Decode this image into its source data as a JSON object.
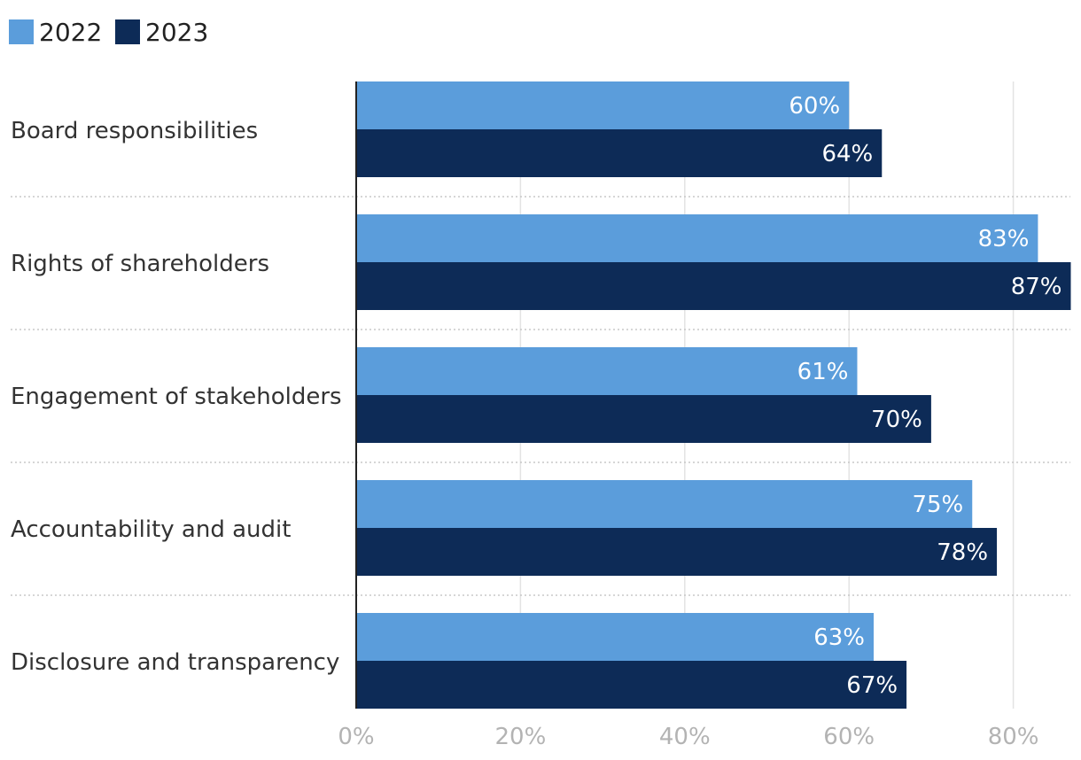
{
  "chart_data": {
    "type": "bar",
    "orientation": "horizontal",
    "categories": [
      "Board responsibilities",
      "Rights of shareholders",
      "Engagement of stakeholders",
      "Accountability and audit",
      "Disclosure and transparency"
    ],
    "series": [
      {
        "name": "2022",
        "color": "#5b9ddb",
        "values": [
          60,
          83,
          61,
          75,
          63
        ],
        "labels": [
          "60%",
          "83%",
          "61%",
          "75%",
          "63%"
        ]
      },
      {
        "name": "2023",
        "color": "#0d2b57",
        "values": [
          64,
          87,
          70,
          78,
          67
        ],
        "labels": [
          "64%",
          "87%",
          "70%",
          "78%",
          "67%"
        ]
      }
    ],
    "xlim": [
      0,
      87
    ],
    "xticks": [
      0,
      20,
      40,
      60,
      80
    ],
    "xtick_labels": [
      "0%",
      "20%",
      "40%",
      "60%",
      "80%"
    ],
    "grid": true,
    "legend_position": "top-left"
  }
}
